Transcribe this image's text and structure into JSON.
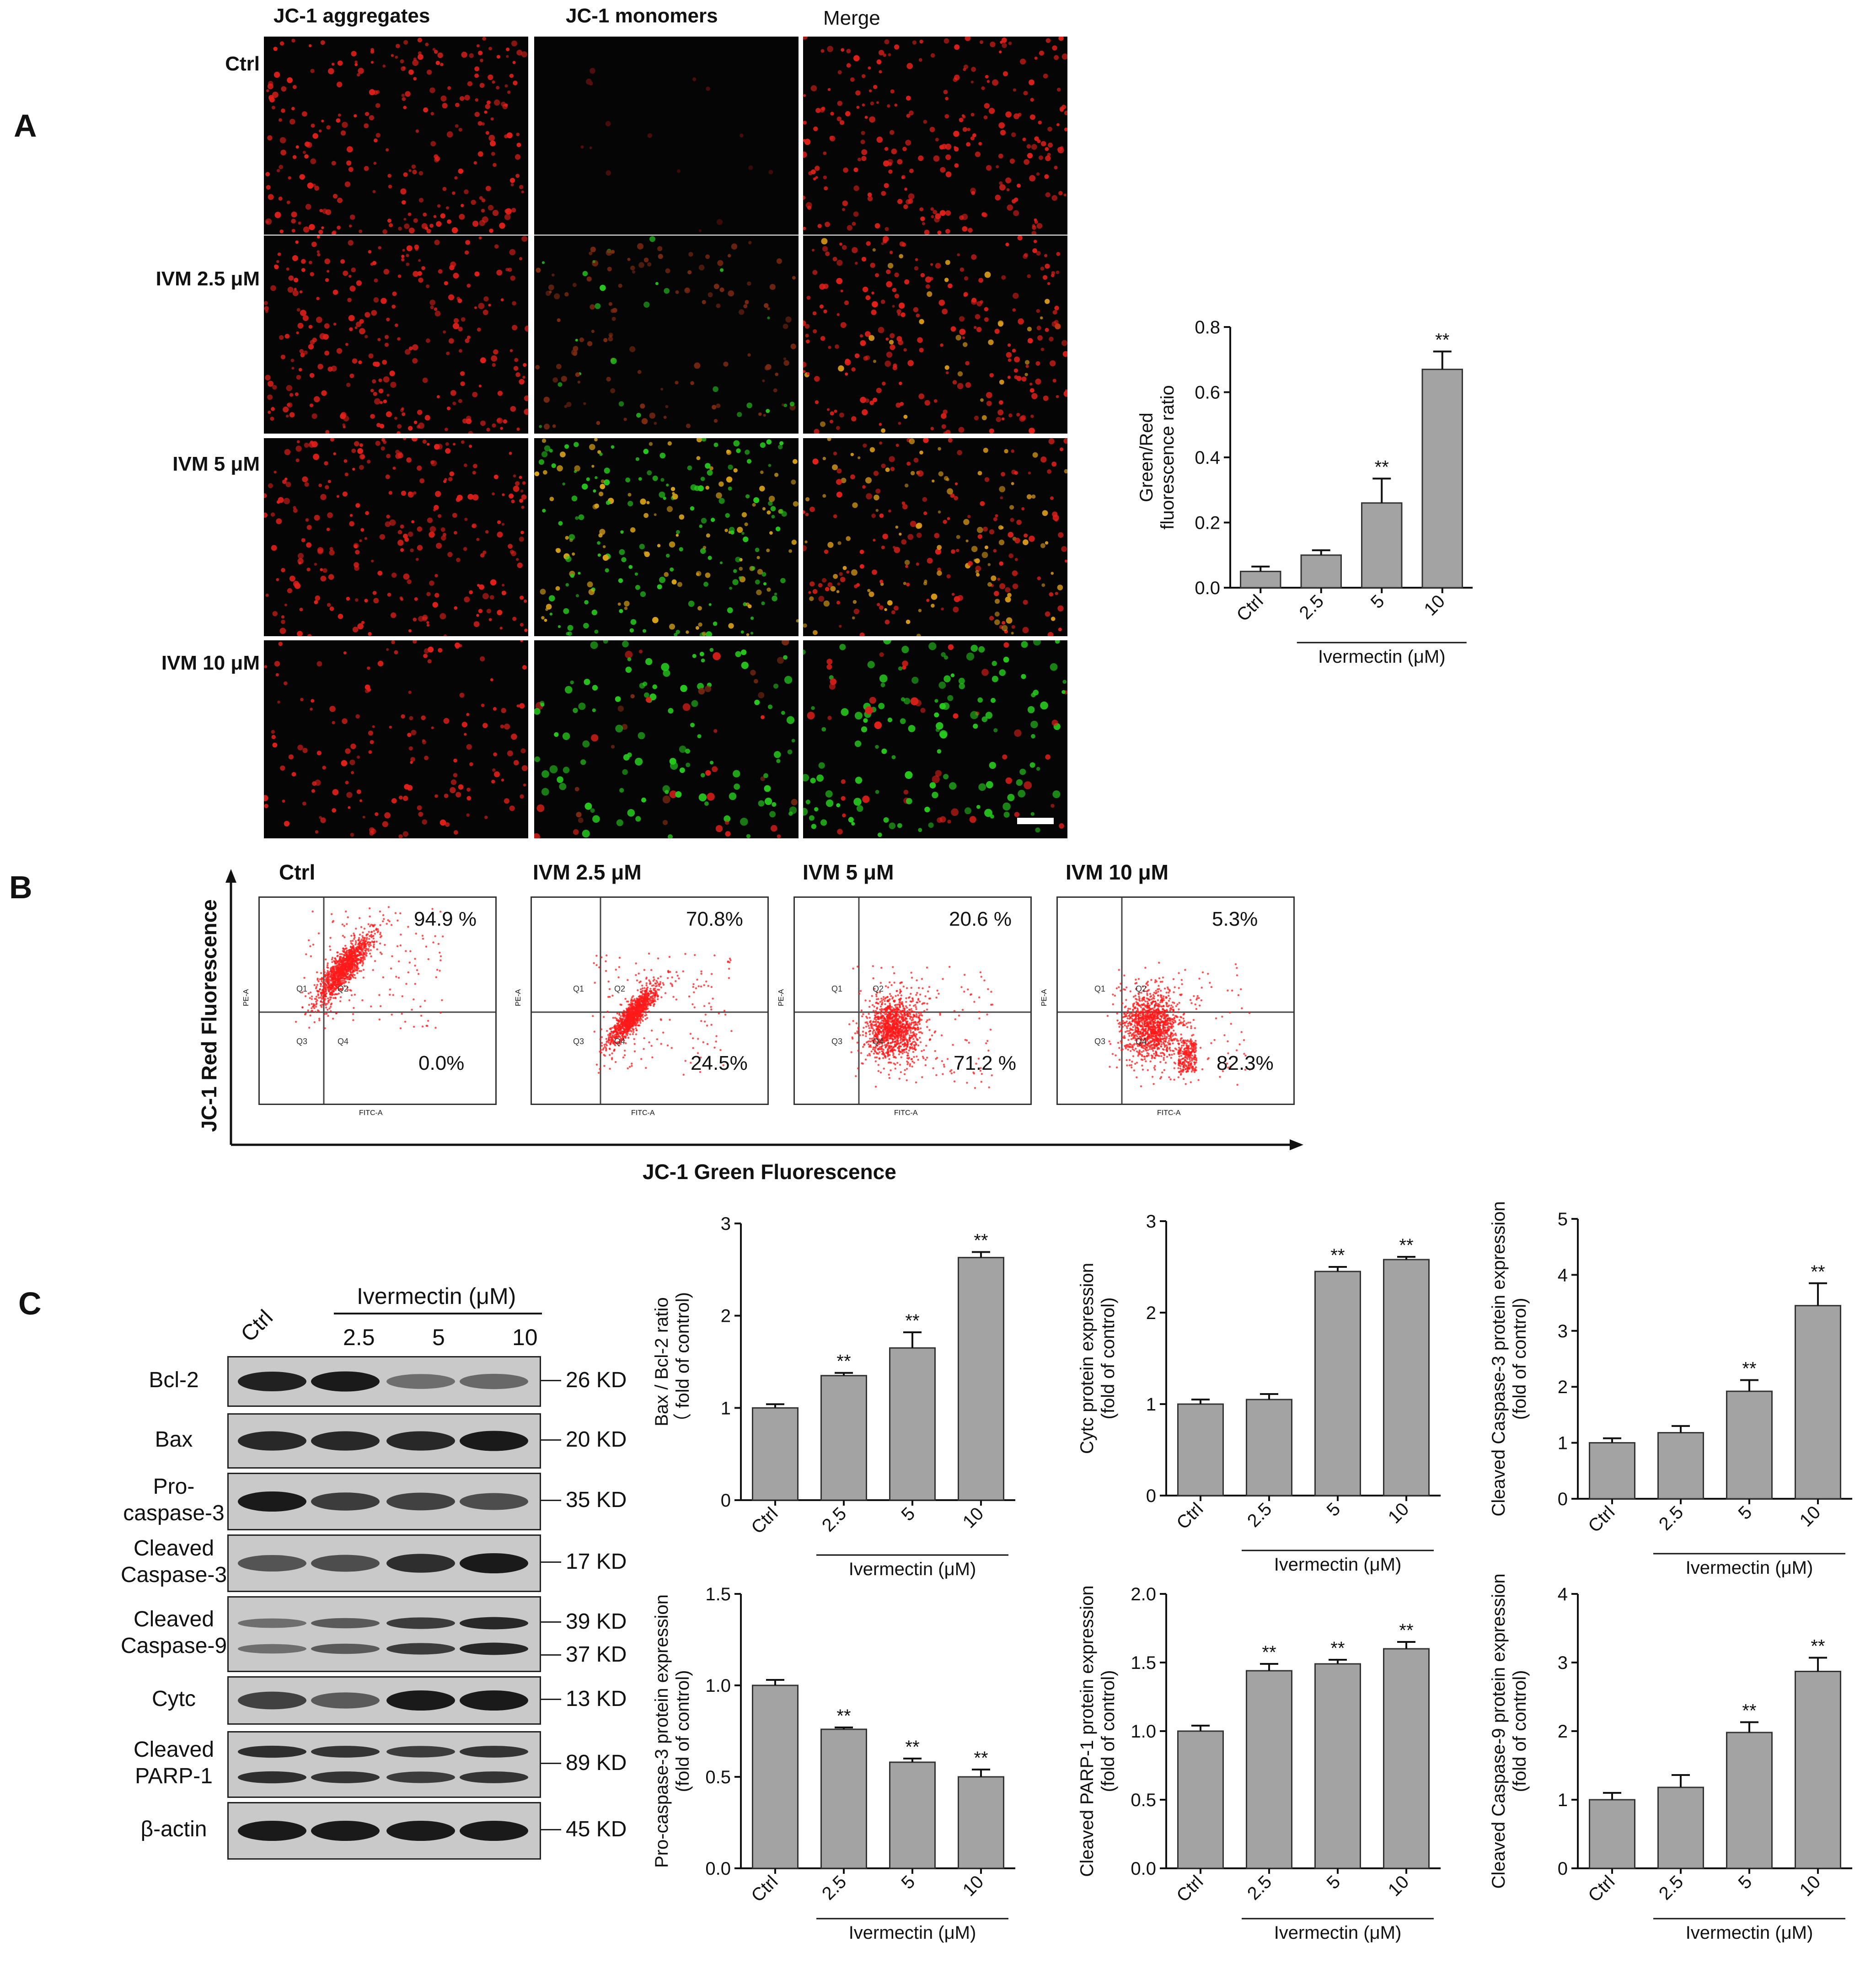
{
  "panel_a": {
    "letter": "A",
    "columns": [
      "JC-1 aggregates",
      "JC-1 monomers",
      "Merge"
    ],
    "rows": [
      "Ctrl",
      "IVM 2.5 μM",
      "IVM 5 μM",
      "IVM 10 μM"
    ]
  },
  "panel_b": {
    "letter": "B",
    "y_axis": "JC-1 Red Fluorescence",
    "x_axis": "JC-1 Green Fluorescence",
    "plots": [
      {
        "title": "Ctrl",
        "upper": "94.9 %",
        "lower": "0.0%"
      },
      {
        "title": "IVM 2.5 μM",
        "upper": "70.8%",
        "lower": "24.5%"
      },
      {
        "title": "IVM 5 μM",
        "upper": "20.6 %",
        "lower": "71.2 %"
      },
      {
        "title": "IVM 10 μM",
        "upper": "5.3%",
        "lower": "82.3%"
      }
    ],
    "small_labels": {
      "q1": "Q1",
      "q2": "Q2",
      "q3": "Q3",
      "q4": "Q4",
      "pe": "PE-A",
      "fitc": "FITC-A"
    }
  },
  "panel_c": {
    "letter": "C",
    "header": "Ivermectin (μM)",
    "lanes": [
      "Ctrl",
      "2.5",
      "5",
      "10"
    ],
    "blots": [
      {
        "label": "Bcl-2",
        "kd": [
          "26 KD"
        ]
      },
      {
        "label": "Bax",
        "kd": [
          "20 KD"
        ]
      },
      {
        "label": "Pro-\ncaspase-3",
        "kd": [
          "35 KD"
        ]
      },
      {
        "label": "Cleaved\nCaspase-3",
        "kd": [
          "17 KD"
        ]
      },
      {
        "label": "Cleaved\nCaspase-9",
        "kd": [
          "39 KD",
          "37 KD"
        ]
      },
      {
        "label": "Cytc",
        "kd": [
          "13 KD"
        ]
      },
      {
        "label": "Cleaved\nPARP-1",
        "kd": [
          "89 KD"
        ]
      },
      {
        "label": "β-actin",
        "kd": [
          "45 KD"
        ]
      }
    ]
  },
  "colors": {
    "bar": "#a3a3a3",
    "red_cell": "#e0201a",
    "green_cell": "#27c81e",
    "dot": "#ff1a1a"
  },
  "chart_data": [
    {
      "type": "bar",
      "id": "jc1",
      "categories": [
        "Ctrl",
        "2.5",
        "5",
        "10"
      ],
      "values": [
        0.05,
        0.1,
        0.26,
        0.67
      ],
      "errors": [
        0.015,
        0.015,
        0.075,
        0.055
      ],
      "sig": [
        "",
        "",
        "**",
        "**"
      ],
      "ylabel": [
        "Green/Red",
        "fluorescence ratio"
      ],
      "xlabel": "Ivermectin (μM)",
      "ylim": [
        0,
        0.8
      ],
      "ticks": [
        "0.0",
        "0.2",
        "0.4",
        "0.6",
        "0.8"
      ]
    },
    {
      "type": "bar",
      "id": "baxbcl2",
      "categories": [
        "Ctrl",
        "2.5",
        "5",
        "10"
      ],
      "values": [
        1.0,
        1.35,
        1.65,
        2.63
      ],
      "errors": [
        0.04,
        0.03,
        0.17,
        0.06
      ],
      "sig": [
        "",
        "**",
        "**",
        "**"
      ],
      "ylabel": [
        "Bax / Bcl-2 ratio",
        "（ fold of control)"
      ],
      "xlabel": "Ivermectin (μM)",
      "ylim": [
        0,
        3
      ],
      "ticks": [
        "0",
        "1",
        "2",
        "3"
      ]
    },
    {
      "type": "bar",
      "id": "cytc",
      "categories": [
        "Ctrl",
        "2.5",
        "5",
        "10"
      ],
      "values": [
        1.0,
        1.05,
        2.45,
        2.58
      ],
      "errors": [
        0.05,
        0.06,
        0.05,
        0.03
      ],
      "sig": [
        "",
        "",
        "**",
        "**"
      ],
      "ylabel": [
        "Cytc protein expression",
        "(fold of control)"
      ],
      "xlabel": "Ivermectin (μM)",
      "ylim": [
        0,
        3
      ],
      "ticks": [
        "0",
        "1",
        "2",
        "3"
      ]
    },
    {
      "type": "bar",
      "id": "clcasp3",
      "categories": [
        "Ctrl",
        "2.5",
        "5",
        "10"
      ],
      "values": [
        1.0,
        1.18,
        1.92,
        3.45
      ],
      "errors": [
        0.08,
        0.12,
        0.2,
        0.4
      ],
      "sig": [
        "",
        "",
        "**",
        "**"
      ],
      "ylabel": [
        "Cleaved Caspase-3 protein expression",
        "(fold of control)"
      ],
      "xlabel": "Ivermectin (μM)",
      "ylim": [
        0,
        5
      ],
      "ticks": [
        "0",
        "1",
        "2",
        "3",
        "4",
        "5"
      ]
    },
    {
      "type": "bar",
      "id": "procasp3",
      "categories": [
        "Ctrl",
        "2.5",
        "5",
        "10"
      ],
      "values": [
        1.0,
        0.76,
        0.58,
        0.5
      ],
      "errors": [
        0.03,
        0.01,
        0.02,
        0.04
      ],
      "sig": [
        "",
        "**",
        "**",
        "**"
      ],
      "ylabel": [
        "Pro-caspase-3 protein expression",
        "(fold of control)"
      ],
      "xlabel": "Ivermectin (μM)",
      "ylim": [
        0,
        1.5
      ],
      "ticks": [
        "0.0",
        "0.5",
        "1.0",
        "1.5"
      ]
    },
    {
      "type": "bar",
      "id": "parp1",
      "categories": [
        "Ctrl",
        "2.5",
        "5",
        "10"
      ],
      "values": [
        1.0,
        1.44,
        1.49,
        1.6
      ],
      "errors": [
        0.04,
        0.05,
        0.03,
        0.05
      ],
      "sig": [
        "",
        "**",
        "**",
        "**"
      ],
      "ylabel": [
        "Cleaved PARP-1 protein expression",
        "(fold of control)"
      ],
      "xlabel": "Ivermectin (μM)",
      "ylim": [
        0,
        2
      ],
      "ticks": [
        "0.0",
        "0.5",
        "1.0",
        "1.5",
        "2.0"
      ]
    },
    {
      "type": "bar",
      "id": "clcasp9",
      "categories": [
        "Ctrl",
        "2.5",
        "5",
        "10"
      ],
      "values": [
        1.0,
        1.18,
        1.98,
        2.87
      ],
      "errors": [
        0.1,
        0.18,
        0.15,
        0.2
      ],
      "sig": [
        "",
        "",
        "**",
        "**"
      ],
      "ylabel": [
        "Cleaved Caspase-9 protein expression",
        "(fold of control)"
      ],
      "xlabel": "Ivermectin (μM)",
      "ylim": [
        0,
        4
      ],
      "ticks": [
        "0",
        "1",
        "2",
        "3",
        "4"
      ]
    }
  ]
}
